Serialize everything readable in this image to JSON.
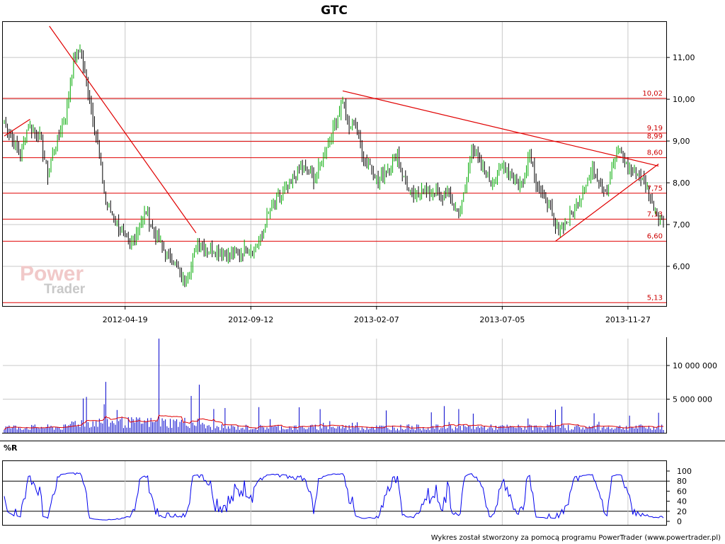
{
  "title": "GTC",
  "footer": "Wykres został stworzony za pomocą programu PowerTrader (www.powertrader.pl)",
  "watermark": {
    "line1": "Power",
    "line2": "Trader"
  },
  "colors": {
    "up": "#00aa00",
    "down": "#000000",
    "level": "#e00000",
    "volume": "#0000cc",
    "volume_ma": "#e00000",
    "wr": "#0000ee"
  },
  "chart_data": [
    {
      "type": "candlestick",
      "title": "GTC",
      "y_ticks": [
        "6,00",
        "7,00",
        "8,00",
        "9,00",
        "10,00",
        "11,00"
      ],
      "ylim": [
        5.05,
        11.85
      ],
      "x_ticks": [
        "2012-04-19",
        "2012-09-12",
        "2013-02-07",
        "2013-07-05",
        "2013-11-27"
      ],
      "levels": [
        {
          "value": 10.02,
          "label": "10,02"
        },
        {
          "value": 9.19,
          "label": "9,19"
        },
        {
          "value": 8.99,
          "label": "8,99"
        },
        {
          "value": 8.6,
          "label": "8,60"
        },
        {
          "value": 7.75,
          "label": "7,75"
        },
        {
          "value": 7.13,
          "label": "7,13"
        },
        {
          "value": 6.6,
          "label": "6,60"
        },
        {
          "value": 5.13,
          "label": "5,13"
        }
      ],
      "close_path": [
        [
          0,
          9.5
        ],
        [
          5,
          9.0
        ],
        [
          10,
          8.7
        ],
        [
          15,
          9.4
        ],
        [
          22,
          9.1
        ],
        [
          27,
          8.2
        ],
        [
          30,
          8.7
        ],
        [
          38,
          9.6
        ],
        [
          43,
          10.9
        ],
        [
          47,
          11.2
        ],
        [
          53,
          10.0
        ],
        [
          58,
          8.9
        ],
        [
          63,
          7.5
        ],
        [
          68,
          7.2
        ],
        [
          73,
          6.8
        ],
        [
          78,
          6.5
        ],
        [
          83,
          6.9
        ],
        [
          88,
          7.3
        ],
        [
          92,
          6.9
        ],
        [
          96,
          6.6
        ],
        [
          100,
          6.3
        ],
        [
          104,
          6.2
        ],
        [
          108,
          5.9
        ],
        [
          112,
          5.6
        ],
        [
          116,
          6.0
        ],
        [
          119,
          6.5
        ],
        [
          122,
          6.6
        ],
        [
          126,
          6.4
        ],
        [
          130,
          6.4
        ],
        [
          135,
          6.3
        ],
        [
          140,
          6.25
        ],
        [
          145,
          6.3
        ],
        [
          150,
          6.4
        ],
        [
          155,
          6.4
        ],
        [
          160,
          6.7
        ],
        [
          163,
          7.2
        ],
        [
          167,
          7.5
        ],
        [
          172,
          7.7
        ],
        [
          176,
          7.9
        ],
        [
          180,
          8.1
        ],
        [
          184,
          8.4
        ],
        [
          188,
          8.3
        ],
        [
          192,
          8.1
        ],
        [
          196,
          8.4
        ],
        [
          200,
          8.9
        ],
        [
          203,
          9.2
        ],
        [
          207,
          9.6
        ],
        [
          210,
          10.0
        ],
        [
          214,
          9.3
        ],
        [
          217,
          9.5
        ],
        [
          220,
          9.0
        ],
        [
          224,
          8.5
        ],
        [
          228,
          8.4
        ],
        [
          232,
          8.0
        ],
        [
          236,
          8.3
        ],
        [
          240,
          8.4
        ],
        [
          244,
          8.7
        ],
        [
          247,
          8.2
        ],
        [
          251,
          7.8
        ],
        [
          255,
          7.6
        ],
        [
          259,
          7.9
        ],
        [
          263,
          7.7
        ],
        [
          267,
          7.8
        ],
        [
          271,
          7.6
        ],
        [
          275,
          7.8
        ],
        [
          279,
          7.4
        ],
        [
          283,
          7.3
        ],
        [
          287,
          8.1
        ],
        [
          290,
          8.9
        ],
        [
          294,
          8.5
        ],
        [
          298,
          8.3
        ],
        [
          302,
          8.0
        ],
        [
          306,
          8.2
        ],
        [
          310,
          8.4
        ],
        [
          314,
          8.2
        ],
        [
          318,
          8.0
        ],
        [
          322,
          8.0
        ],
        [
          326,
          8.8
        ],
        [
          330,
          8.0
        ],
        [
          334,
          7.7
        ],
        [
          338,
          7.5
        ],
        [
          342,
          6.9
        ],
        [
          346,
          7.0
        ],
        [
          350,
          7.1
        ],
        [
          354,
          7.4
        ],
        [
          358,
          7.7
        ],
        [
          362,
          8.1
        ],
        [
          366,
          8.3
        ],
        [
          370,
          8.0
        ],
        [
          374,
          7.8
        ],
        [
          378,
          8.5
        ],
        [
          382,
          8.8
        ],
        [
          386,
          8.4
        ],
        [
          390,
          8.3
        ],
        [
          394,
          8.2
        ],
        [
          398,
          7.9
        ],
        [
          402,
          7.5
        ],
        [
          405,
          7.3
        ],
        [
          408,
          7.1
        ],
        [
          409,
          7.0
        ]
      ],
      "trendlines": [
        {
          "from": [
            28,
            11.75
          ],
          "to": [
            119,
            6.8
          ]
        },
        {
          "from": [
            210,
            10.2
          ],
          "to": [
            406,
            8.4
          ]
        },
        {
          "from": [
            342,
            6.6
          ],
          "to": [
            406,
            8.45
          ]
        },
        {
          "from": [
            0,
            9.12
          ],
          "to": [
            16,
            9.52
          ]
        }
      ]
    },
    {
      "type": "bar",
      "series_name": "Volume",
      "y_ticks": [
        "5 000 000",
        "10 000 000"
      ],
      "ylim": [
        0,
        14000000
      ],
      "volume_spike": 14000000
    },
    {
      "type": "line",
      "title": "%R",
      "y_ticks": [
        "0",
        "20",
        "40",
        "60",
        "80",
        "100"
      ],
      "ylim": [
        0,
        100
      ],
      "guide_lines": [
        20,
        80
      ]
    }
  ]
}
